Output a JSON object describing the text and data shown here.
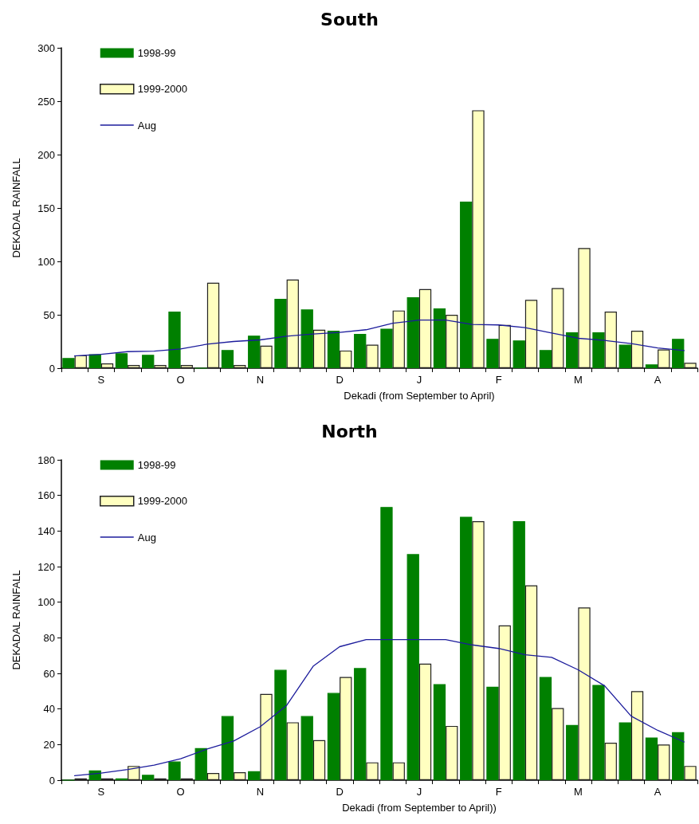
{
  "chart_data": [
    {
      "type": "bar",
      "title": "South",
      "xlabel": "Dekadi (from September to April)",
      "ylabel": "DEKADAL RAINFALL",
      "categories": [
        null,
        "S",
        null,
        null,
        "O",
        null,
        null,
        "N",
        null,
        null,
        "D",
        null,
        null,
        "J",
        null,
        null,
        "F",
        null,
        null,
        "M",
        null,
        null,
        "A",
        null
      ],
      "series": [
        {
          "name": "1998-99",
          "color": "#008000",
          "values": [
            9.5,
            13,
            14,
            12.5,
            53,
            0,
            17,
            30.5,
            65,
            55,
            35,
            32,
            37,
            66.5,
            56,
            156,
            27.5,
            26,
            17,
            33.5,
            33.5,
            22,
            3.5,
            27.5
          ]
        },
        {
          "name": "1999-2000",
          "color": "#ffffc0",
          "values": [
            12,
            4.5,
            3,
            3,
            3,
            80,
            3,
            21,
            83,
            36,
            16.5,
            22,
            54,
            74,
            50,
            241.5,
            40.5,
            64,
            75,
            112.5,
            53,
            35,
            17.5,
            5
          ]
        },
        {
          "name": "Aug",
          "type": "line",
          "color": "#1c1c9c",
          "values": [
            11.5,
            13,
            15.5,
            16,
            18,
            22.5,
            25,
            26.5,
            30,
            32,
            33.5,
            36,
            42,
            45,
            45,
            41,
            40.5,
            38,
            33,
            28,
            26,
            23,
            19,
            16.5
          ]
        }
      ],
      "ylim": [
        0,
        300
      ],
      "yticks": [
        0,
        50,
        100,
        150,
        200,
        250,
        300
      ],
      "grid": false,
      "legend": "top left",
      "marker": "none",
      "line_style": "solid"
    },
    {
      "type": "bar",
      "title": "North",
      "xlabel": "Dekadi (from September to April))",
      "ylabel": "DEKADAL RAINFALL",
      "categories": [
        null,
        "S",
        null,
        null,
        "O",
        null,
        null,
        "N",
        null,
        null,
        "D",
        null,
        null,
        "J",
        null,
        null,
        "F",
        null,
        null,
        "M",
        null,
        null,
        "A",
        null
      ],
      "series": [
        {
          "name": "1998-99",
          "color": "#008000",
          "values": [
            0,
            5.5,
            1,
            3,
            10.5,
            18,
            36,
            5,
            62,
            36,
            49,
            63,
            153.5,
            127,
            54,
            148,
            52.5,
            145.5,
            58,
            31,
            53.5,
            32.5,
            24,
            27
          ]
        },
        {
          "name": "1999-2000",
          "color": "#ffffc0",
          "values": [
            1,
            1,
            8,
            1,
            1,
            4,
            4.5,
            48.5,
            32.5,
            22.5,
            58,
            10,
            10,
            65.5,
            30.5,
            145.5,
            87,
            109.5,
            40.5,
            97,
            21,
            50,
            20,
            8
          ]
        },
        {
          "name": "Aug",
          "type": "line",
          "color": "#1c1c9c",
          "values": [
            2.5,
            4,
            6,
            8.5,
            12,
            17.5,
            22,
            30,
            42,
            64,
            75,
            79,
            79,
            79,
            79,
            76,
            74,
            70.5,
            69,
            62,
            53,
            36,
            28,
            21.5
          ]
        }
      ],
      "ylim": [
        0,
        180
      ],
      "yticks": [
        0,
        20,
        40,
        60,
        80,
        100,
        120,
        140,
        160,
        180
      ],
      "grid": false,
      "legend": "top left",
      "marker": "none",
      "line_style": "solid"
    }
  ]
}
